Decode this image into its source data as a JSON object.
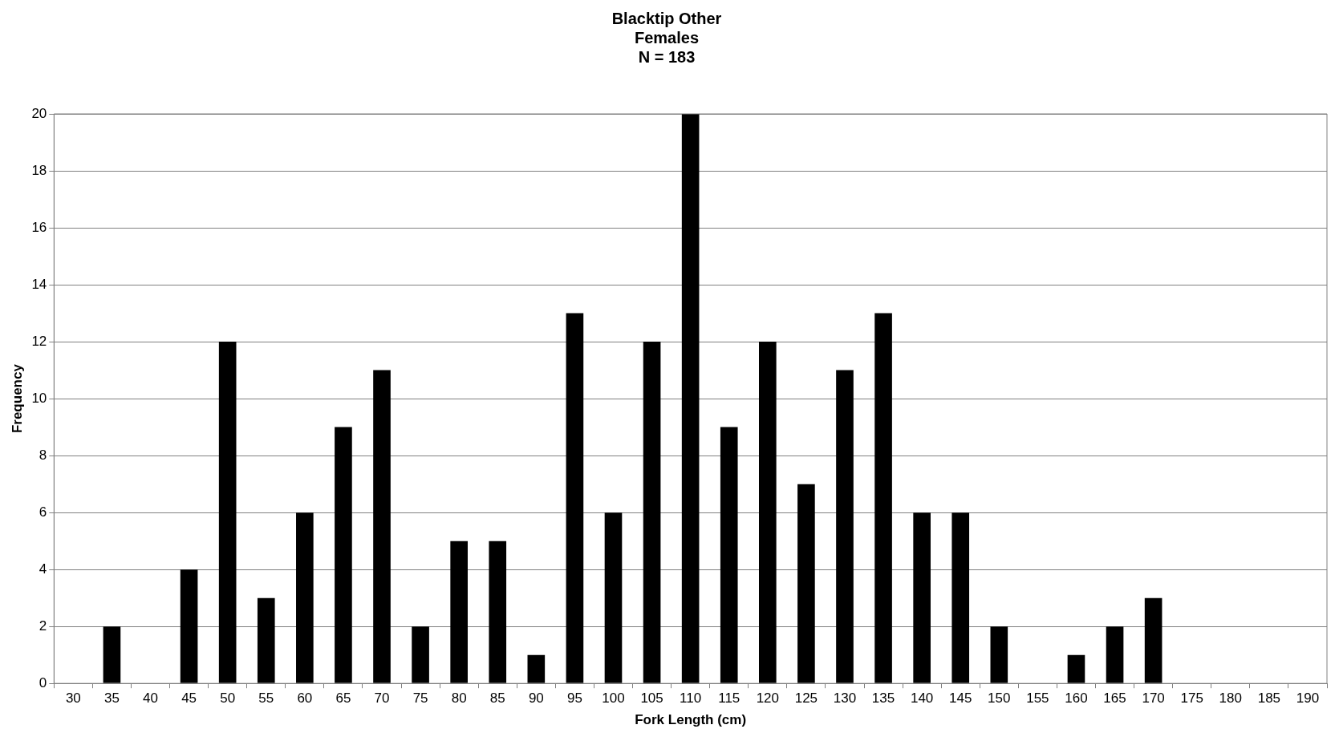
{
  "chart_data": {
    "type": "bar",
    "title": "Blacktip Other\nFemales\nN = 183",
    "xlabel": "Fork Length (cm)",
    "ylabel": "Frequency",
    "categories": [
      "30",
      "35",
      "40",
      "45",
      "50",
      "55",
      "60",
      "65",
      "70",
      "75",
      "80",
      "85",
      "90",
      "95",
      "100",
      "105",
      "110",
      "115",
      "120",
      "125",
      "130",
      "135",
      "140",
      "145",
      "150",
      "155",
      "160",
      "165",
      "170",
      "175",
      "180",
      "185",
      "190"
    ],
    "values": [
      0,
      2,
      0,
      4,
      12,
      3,
      6,
      9,
      11,
      2,
      5,
      5,
      1,
      13,
      6,
      12,
      20,
      9,
      12,
      7,
      11,
      13,
      6,
      6,
      2,
      0,
      1,
      2,
      3,
      0,
      0,
      0,
      0
    ],
    "color": "#000000",
    "ylim": [
      0,
      20
    ],
    "yticks": [
      0,
      2,
      4,
      6,
      8,
      10,
      12,
      14,
      16,
      18,
      20
    ],
    "grid": "y",
    "legend": false
  }
}
